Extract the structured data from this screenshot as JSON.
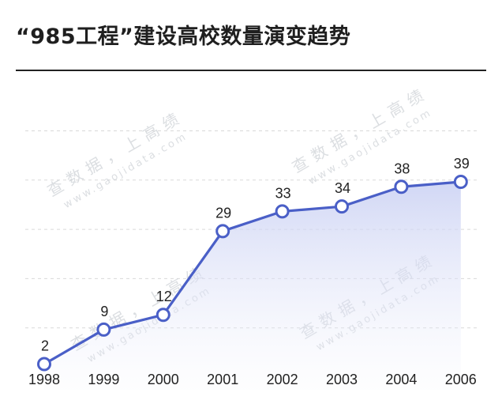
{
  "title": "“985工程”建设高校数量演变趋势",
  "watermark": {
    "cn": "查数据，上高绩",
    "url": "www.gaojidata.com"
  },
  "colors": {
    "line": "#4a5fc7",
    "area_top": "#c9d0f3",
    "grid": "#d9d9d9",
    "text": "#222222"
  },
  "chart_data": {
    "type": "area",
    "title": "“985工程”建设高校数量演变趋势",
    "categories": [
      "1998",
      "1999",
      "2000",
      "2001",
      "2002",
      "2003",
      "2004",
      "2006"
    ],
    "values": [
      2,
      9,
      12,
      29,
      33,
      34,
      38,
      39
    ],
    "data_labels": [
      "2",
      "9",
      "12",
      "29",
      "33",
      "34",
      "38",
      "39"
    ],
    "ylim": [
      0,
      50
    ],
    "grid": true,
    "legend": "none",
    "xlabel": "",
    "ylabel": ""
  }
}
